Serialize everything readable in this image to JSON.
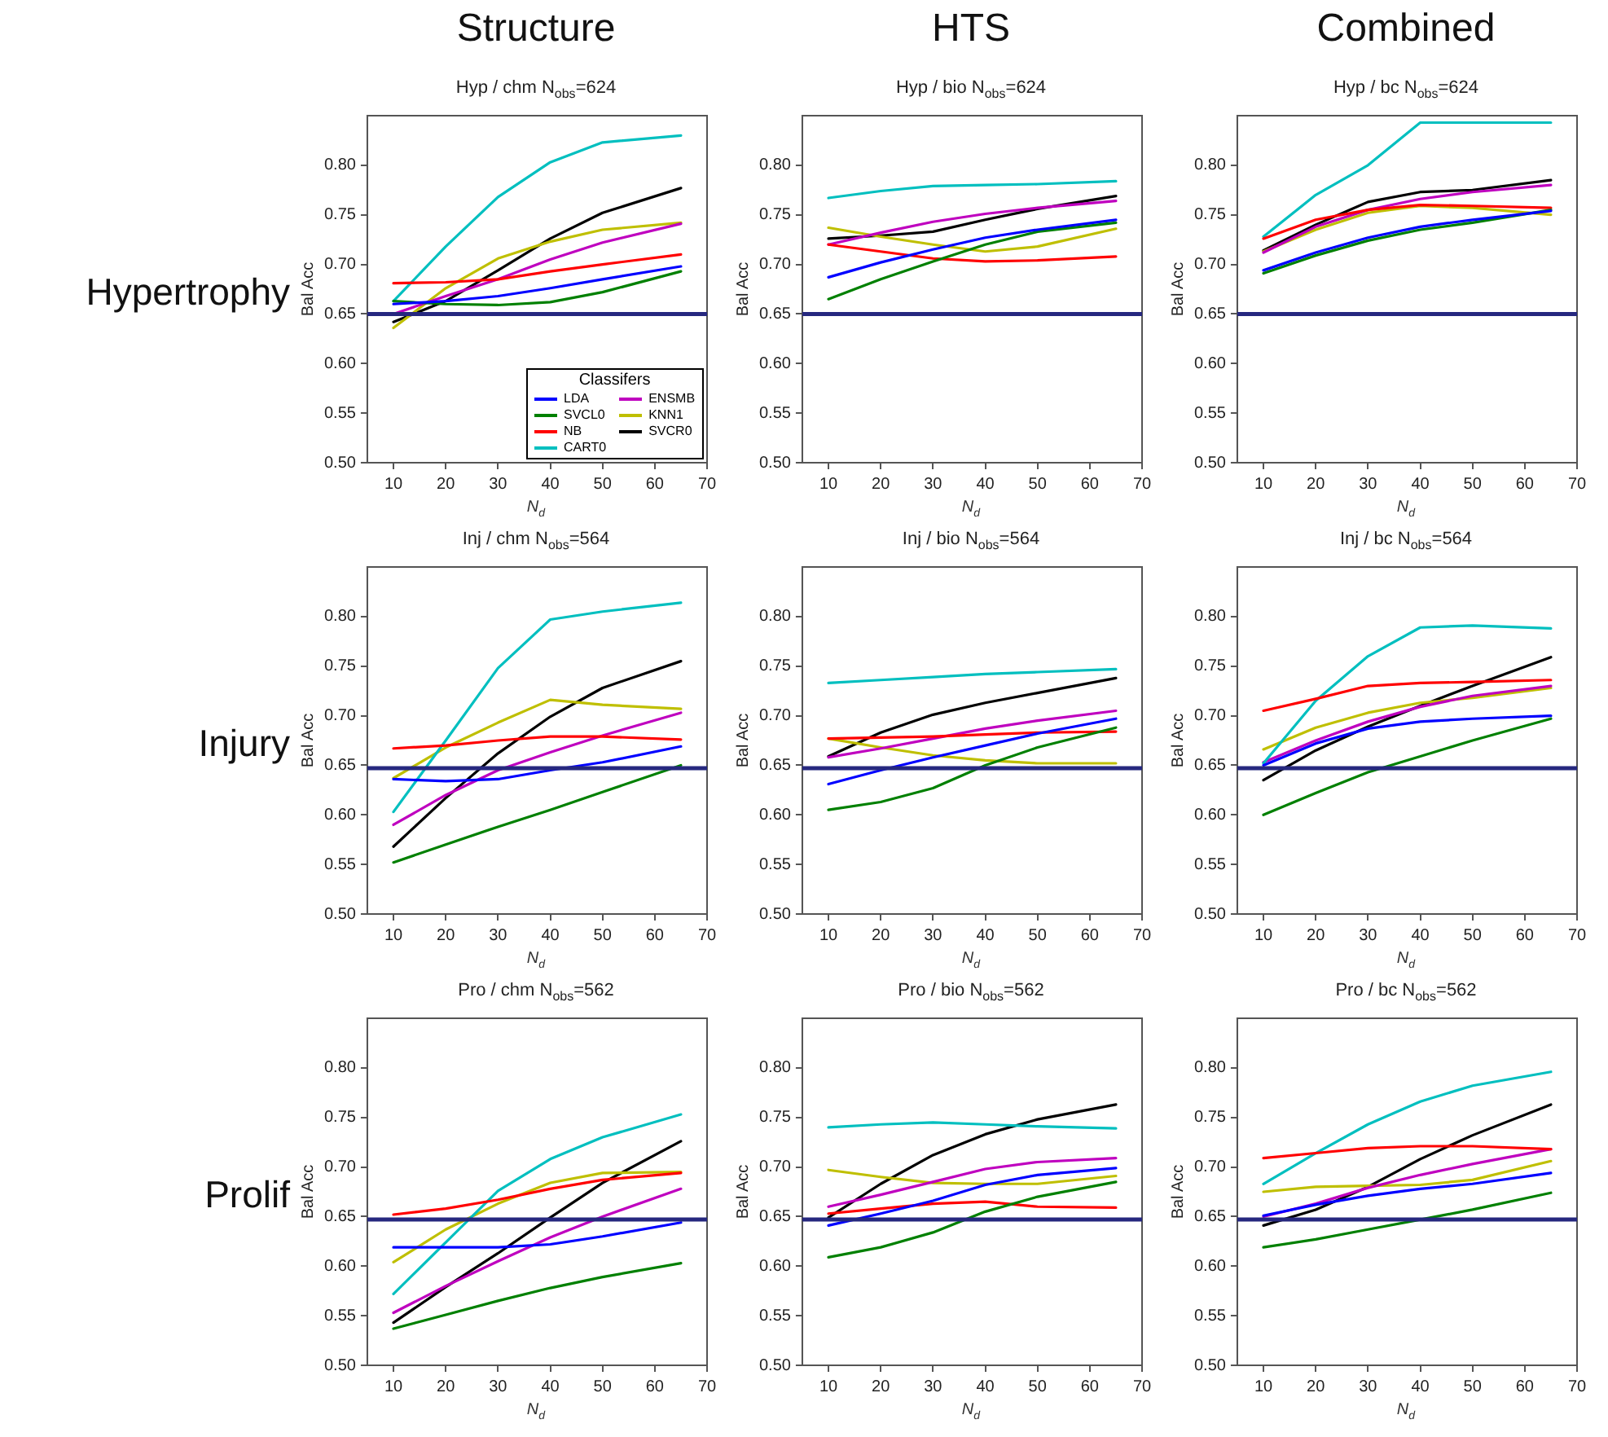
{
  "chart_data": [
    {
      "type": "line",
      "title": "Hyp / chm N$_{obs}$=624",
      "xlabel": "N$_{d}$",
      "ylabel": "Bal Acc",
      "annotations": [
        "Structure",
        "Hypertrophy"
      ],
      "legend": "bottom right",
      "legend_title": "Classifers",
      "x": [
        10,
        20,
        30,
        40,
        50,
        65
      ],
      "xlim": [
        5,
        70
      ],
      "xticks": [
        10,
        20,
        30,
        40,
        50,
        60,
        70
      ],
      "ylim": [
        0.5,
        0.85
      ],
      "yticks": [
        {
          "value": 0.5,
          "label": "0.50"
        },
        {
          "value": 0.55,
          "label": "0.55"
        },
        {
          "value": 0.6,
          "label": "0.60"
        },
        {
          "value": 0.65,
          "label": "0.65"
        },
        {
          "value": 0.7,
          "label": "0.70"
        },
        {
          "value": 0.75,
          "label": "0.75"
        },
        {
          "value": 0.8,
          "label": "0.80"
        }
      ],
      "ref_lines": [
        {
          "axis": "y",
          "value": 0.65,
          "color": "#26287f"
        }
      ],
      "series": [
        {
          "name": "LDA",
          "color": "#0000ff",
          "values": [
            0.66,
            0.663,
            0.668,
            0.676,
            0.685,
            0.698
          ]
        },
        {
          "name": "SVCL0",
          "color": "#008000",
          "values": [
            0.663,
            0.66,
            0.659,
            0.662,
            0.672,
            0.693
          ]
        },
        {
          "name": "NB",
          "color": "#ff0000",
          "values": [
            0.681,
            0.682,
            0.685,
            0.693,
            0.7,
            0.71
          ]
        },
        {
          "name": "CART0",
          "color": "#00bfbf",
          "values": [
            0.663,
            0.718,
            0.768,
            0.803,
            0.823,
            0.83
          ]
        },
        {
          "name": "ENSMB",
          "color": "#bf00bf",
          "values": [
            0.65,
            0.668,
            0.685,
            0.705,
            0.722,
            0.741
          ]
        },
        {
          "name": "KNN1",
          "color": "#bfbf00",
          "values": [
            0.636,
            0.676,
            0.706,
            0.723,
            0.735,
            0.742
          ]
        },
        {
          "name": "SVCR0",
          "color": "#000000",
          "values": [
            0.642,
            0.663,
            0.694,
            0.726,
            0.752,
            0.777
          ]
        }
      ]
    },
    {
      "type": "line",
      "title": "Hyp / bio N$_{obs}$=624",
      "xlabel": "N$_{d}$",
      "ylabel": "Bal Acc",
      "annotations": [
        "HTS"
      ],
      "x": [
        10,
        20,
        30,
        40,
        50,
        65
      ],
      "xlim": [
        5,
        70
      ],
      "xticks": [
        10,
        20,
        30,
        40,
        50,
        60,
        70
      ],
      "ylim": [
        0.5,
        0.85
      ],
      "yticks": [
        {
          "value": 0.5,
          "label": "0.50"
        },
        {
          "value": 0.55,
          "label": "0.55"
        },
        {
          "value": 0.6,
          "label": "0.60"
        },
        {
          "value": 0.65,
          "label": "0.65"
        },
        {
          "value": 0.7,
          "label": "0.70"
        },
        {
          "value": 0.75,
          "label": "0.75"
        },
        {
          "value": 0.8,
          "label": "0.80"
        }
      ],
      "ref_lines": [
        {
          "axis": "y",
          "value": 0.65,
          "color": "#26287f"
        }
      ],
      "series": [
        {
          "color": "#0000ff",
          "values": [
            0.687,
            0.702,
            0.715,
            0.727,
            0.735,
            0.745
          ]
        },
        {
          "color": "#008000",
          "values": [
            0.665,
            0.685,
            0.703,
            0.72,
            0.733,
            0.742
          ]
        },
        {
          "color": "#ff0000",
          "values": [
            0.72,
            0.713,
            0.706,
            0.703,
            0.704,
            0.708
          ]
        },
        {
          "color": "#00bfbf",
          "values": [
            0.767,
            0.774,
            0.779,
            0.78,
            0.781,
            0.784
          ]
        },
        {
          "color": "#bf00bf",
          "values": [
            0.72,
            0.732,
            0.743,
            0.751,
            0.757,
            0.764
          ]
        },
        {
          "color": "#bfbf00",
          "values": [
            0.737,
            0.728,
            0.72,
            0.713,
            0.718,
            0.736
          ]
        },
        {
          "color": "#000000",
          "values": [
            0.726,
            0.729,
            0.733,
            0.745,
            0.756,
            0.769
          ]
        }
      ]
    },
    {
      "type": "line",
      "title": "Hyp / bc N$_{obs}$=624",
      "xlabel": "N$_{d}$",
      "ylabel": "Bal Acc",
      "annotations": [
        "Combined"
      ],
      "x": [
        10,
        20,
        30,
        40,
        50,
        65
      ],
      "xlim": [
        5,
        70
      ],
      "xticks": [
        10,
        20,
        30,
        40,
        50,
        60,
        70
      ],
      "ylim": [
        0.5,
        0.85
      ],
      "yticks": [
        {
          "value": 0.5,
          "label": "0.50"
        },
        {
          "value": 0.55,
          "label": "0.55"
        },
        {
          "value": 0.6,
          "label": "0.60"
        },
        {
          "value": 0.65,
          "label": "0.65"
        },
        {
          "value": 0.7,
          "label": "0.70"
        },
        {
          "value": 0.75,
          "label": "0.75"
        },
        {
          "value": 0.8,
          "label": "0.80"
        }
      ],
      "ref_lines": [
        {
          "axis": "y",
          "value": 0.65,
          "color": "#26287f"
        }
      ],
      "series": [
        {
          "color": "#0000ff",
          "values": [
            0.694,
            0.712,
            0.727,
            0.738,
            0.745,
            0.754
          ]
        },
        {
          "color": "#008000",
          "values": [
            0.691,
            0.709,
            0.724,
            0.735,
            0.742,
            0.755
          ]
        },
        {
          "color": "#ff0000",
          "values": [
            0.726,
            0.745,
            0.755,
            0.76,
            0.759,
            0.757
          ]
        },
        {
          "color": "#00bfbf",
          "values": [
            0.728,
            0.77,
            0.8,
            0.843,
            0.843,
            0.843
          ]
        },
        {
          "color": "#bf00bf",
          "values": [
            0.712,
            0.738,
            0.755,
            0.766,
            0.773,
            0.78
          ]
        },
        {
          "color": "#bfbf00",
          "values": [
            0.713,
            0.735,
            0.752,
            0.759,
            0.757,
            0.75
          ]
        },
        {
          "color": "#000000",
          "values": [
            0.714,
            0.74,
            0.763,
            0.773,
            0.775,
            0.785
          ]
        }
      ]
    },
    {
      "type": "line",
      "title": "Inj / chm N$_{obs}$=564",
      "xlabel": "N$_{d}$",
      "ylabel": "Bal Acc",
      "annotations": [
        "Injury"
      ],
      "x": [
        10,
        20,
        30,
        40,
        50,
        65
      ],
      "xlim": [
        5,
        70
      ],
      "xticks": [
        10,
        20,
        30,
        40,
        50,
        60,
        70
      ],
      "ylim": [
        0.5,
        0.85
      ],
      "yticks": [
        {
          "value": 0.5,
          "label": "0.50"
        },
        {
          "value": 0.55,
          "label": "0.55"
        },
        {
          "value": 0.6,
          "label": "0.60"
        },
        {
          "value": 0.65,
          "label": "0.65"
        },
        {
          "value": 0.7,
          "label": "0.70"
        },
        {
          "value": 0.75,
          "label": "0.75"
        },
        {
          "value": 0.8,
          "label": "0.80"
        }
      ],
      "ref_lines": [
        {
          "axis": "y",
          "value": 0.647,
          "color": "#26287f"
        }
      ],
      "series": [
        {
          "color": "#0000ff",
          "values": [
            0.636,
            0.634,
            0.636,
            0.645,
            0.653,
            0.669
          ]
        },
        {
          "color": "#008000",
          "values": [
            0.552,
            0.57,
            0.588,
            0.605,
            0.623,
            0.65
          ]
        },
        {
          "color": "#ff0000",
          "values": [
            0.667,
            0.67,
            0.675,
            0.679,
            0.679,
            0.676
          ]
        },
        {
          "color": "#00bfbf",
          "values": [
            0.603,
            0.675,
            0.748,
            0.797,
            0.805,
            0.814
          ]
        },
        {
          "color": "#bf00bf",
          "values": [
            0.59,
            0.62,
            0.645,
            0.663,
            0.68,
            0.703
          ]
        },
        {
          "color": "#bfbf00",
          "values": [
            0.637,
            0.668,
            0.693,
            0.716,
            0.711,
            0.707
          ]
        },
        {
          "color": "#000000",
          "values": [
            0.568,
            0.617,
            0.662,
            0.699,
            0.728,
            0.755
          ]
        }
      ]
    },
    {
      "type": "line",
      "title": "Inj / bio N$_{obs}$=564",
      "xlabel": "N$_{d}$",
      "ylabel": "Bal Acc",
      "x": [
        10,
        20,
        30,
        40,
        50,
        65
      ],
      "xlim": [
        5,
        70
      ],
      "xticks": [
        10,
        20,
        30,
        40,
        50,
        60,
        70
      ],
      "ylim": [
        0.5,
        0.85
      ],
      "yticks": [
        {
          "value": 0.5,
          "label": "0.50"
        },
        {
          "value": 0.55,
          "label": "0.55"
        },
        {
          "value": 0.6,
          "label": "0.60"
        },
        {
          "value": 0.65,
          "label": "0.65"
        },
        {
          "value": 0.7,
          "label": "0.70"
        },
        {
          "value": 0.75,
          "label": "0.75"
        },
        {
          "value": 0.8,
          "label": "0.80"
        }
      ],
      "ref_lines": [
        {
          "axis": "y",
          "value": 0.647,
          "color": "#26287f"
        }
      ],
      "series": [
        {
          "color": "#0000ff",
          "values": [
            0.631,
            0.645,
            0.658,
            0.67,
            0.682,
            0.697
          ]
        },
        {
          "color": "#008000",
          "values": [
            0.605,
            0.613,
            0.627,
            0.65,
            0.668,
            0.688
          ]
        },
        {
          "color": "#ff0000",
          "values": [
            0.677,
            0.678,
            0.679,
            0.681,
            0.683,
            0.684
          ]
        },
        {
          "color": "#00bfbf",
          "values": [
            0.733,
            0.736,
            0.739,
            0.742,
            0.744,
            0.747
          ]
        },
        {
          "color": "#bf00bf",
          "values": [
            0.658,
            0.667,
            0.677,
            0.687,
            0.695,
            0.705
          ]
        },
        {
          "color": "#bfbf00",
          "values": [
            0.677,
            0.668,
            0.66,
            0.655,
            0.652,
            0.652
          ]
        },
        {
          "color": "#000000",
          "values": [
            0.659,
            0.683,
            0.701,
            0.713,
            0.723,
            0.738
          ]
        }
      ]
    },
    {
      "type": "line",
      "title": "Inj / bc N$_{obs}$=564",
      "xlabel": "N$_{d}$",
      "ylabel": "Bal Acc",
      "x": [
        10,
        20,
        30,
        40,
        50,
        65
      ],
      "xlim": [
        5,
        70
      ],
      "xticks": [
        10,
        20,
        30,
        40,
        50,
        60,
        70
      ],
      "ylim": [
        0.5,
        0.85
      ],
      "yticks": [
        {
          "value": 0.5,
          "label": "0.50"
        },
        {
          "value": 0.55,
          "label": "0.55"
        },
        {
          "value": 0.6,
          "label": "0.60"
        },
        {
          "value": 0.65,
          "label": "0.65"
        },
        {
          "value": 0.7,
          "label": "0.70"
        },
        {
          "value": 0.75,
          "label": "0.75"
        },
        {
          "value": 0.8,
          "label": "0.80"
        }
      ],
      "ref_lines": [
        {
          "axis": "y",
          "value": 0.647,
          "color": "#26287f"
        }
      ],
      "series": [
        {
          "color": "#0000ff",
          "values": [
            0.65,
            0.672,
            0.687,
            0.694,
            0.697,
            0.7
          ]
        },
        {
          "color": "#008000",
          "values": [
            0.6,
            0.622,
            0.643,
            0.659,
            0.675,
            0.697
          ]
        },
        {
          "color": "#ff0000",
          "values": [
            0.705,
            0.717,
            0.73,
            0.733,
            0.734,
            0.736
          ]
        },
        {
          "color": "#00bfbf",
          "values": [
            0.652,
            0.715,
            0.76,
            0.789,
            0.791,
            0.788
          ]
        },
        {
          "color": "#bf00bf",
          "values": [
            0.653,
            0.675,
            0.694,
            0.709,
            0.72,
            0.73
          ]
        },
        {
          "color": "#bfbf00",
          "values": [
            0.666,
            0.688,
            0.703,
            0.713,
            0.718,
            0.728
          ]
        },
        {
          "color": "#000000",
          "values": [
            0.635,
            0.665,
            0.689,
            0.71,
            0.73,
            0.759
          ]
        }
      ]
    },
    {
      "type": "line",
      "title": "Pro / chm N$_{obs}$=562",
      "xlabel": "N$_{d}$",
      "ylabel": "Bal Acc",
      "annotations": [
        "Prolif"
      ],
      "x": [
        10,
        20,
        30,
        40,
        50,
        65
      ],
      "xlim": [
        5,
        70
      ],
      "xticks": [
        10,
        20,
        30,
        40,
        50,
        60,
        70
      ],
      "ylim": [
        0.5,
        0.85
      ],
      "yticks": [
        {
          "value": 0.5,
          "label": "0.50"
        },
        {
          "value": 0.55,
          "label": "0.55"
        },
        {
          "value": 0.6,
          "label": "0.60"
        },
        {
          "value": 0.65,
          "label": "0.65"
        },
        {
          "value": 0.7,
          "label": "0.70"
        },
        {
          "value": 0.75,
          "label": "0.75"
        },
        {
          "value": 0.8,
          "label": "0.80"
        }
      ],
      "ref_lines": [
        {
          "axis": "y",
          "value": 0.647,
          "color": "#26287f"
        }
      ],
      "series": [
        {
          "color": "#0000ff",
          "values": [
            0.619,
            0.619,
            0.619,
            0.622,
            0.63,
            0.644
          ]
        },
        {
          "color": "#008000",
          "values": [
            0.537,
            0.551,
            0.565,
            0.578,
            0.589,
            0.603
          ]
        },
        {
          "color": "#ff0000",
          "values": [
            0.652,
            0.658,
            0.667,
            0.678,
            0.687,
            0.694
          ]
        },
        {
          "color": "#00bfbf",
          "values": [
            0.572,
            0.624,
            0.676,
            0.708,
            0.73,
            0.753
          ]
        },
        {
          "color": "#bf00bf",
          "values": [
            0.553,
            0.58,
            0.605,
            0.629,
            0.65,
            0.678
          ]
        },
        {
          "color": "#bfbf00",
          "values": [
            0.604,
            0.637,
            0.663,
            0.684,
            0.694,
            0.695
          ]
        },
        {
          "color": "#000000",
          "values": [
            0.543,
            0.579,
            0.613,
            0.649,
            0.684,
            0.726
          ]
        }
      ]
    },
    {
      "type": "line",
      "title": "Pro / bio N$_{obs}$=562",
      "xlabel": "N$_{d}$",
      "ylabel": "Bal Acc",
      "x": [
        10,
        20,
        30,
        40,
        50,
        65
      ],
      "xlim": [
        5,
        70
      ],
      "xticks": [
        10,
        20,
        30,
        40,
        50,
        60,
        70
      ],
      "ylim": [
        0.5,
        0.85
      ],
      "yticks": [
        {
          "value": 0.5,
          "label": "0.50"
        },
        {
          "value": 0.55,
          "label": "0.55"
        },
        {
          "value": 0.6,
          "label": "0.60"
        },
        {
          "value": 0.65,
          "label": "0.65"
        },
        {
          "value": 0.7,
          "label": "0.70"
        },
        {
          "value": 0.75,
          "label": "0.75"
        },
        {
          "value": 0.8,
          "label": "0.80"
        }
      ],
      "ref_lines": [
        {
          "axis": "y",
          "value": 0.647,
          "color": "#26287f"
        }
      ],
      "series": [
        {
          "color": "#0000ff",
          "values": [
            0.641,
            0.653,
            0.666,
            0.682,
            0.692,
            0.699
          ]
        },
        {
          "color": "#008000",
          "values": [
            0.609,
            0.619,
            0.634,
            0.655,
            0.67,
            0.685
          ]
        },
        {
          "color": "#ff0000",
          "values": [
            0.653,
            0.658,
            0.663,
            0.665,
            0.66,
            0.659
          ]
        },
        {
          "color": "#00bfbf",
          "values": [
            0.74,
            0.743,
            0.745,
            0.743,
            0.741,
            0.739
          ]
        },
        {
          "color": "#bf00bf",
          "values": [
            0.66,
            0.672,
            0.685,
            0.698,
            0.705,
            0.709
          ]
        },
        {
          "color": "#bfbf00",
          "values": [
            0.697,
            0.69,
            0.684,
            0.683,
            0.683,
            0.691
          ]
        },
        {
          "color": "#000000",
          "values": [
            0.649,
            0.683,
            0.712,
            0.733,
            0.748,
            0.763
          ]
        }
      ]
    },
    {
      "type": "line",
      "title": "Pro / bc N$_{obs}$=562",
      "xlabel": "N$_{d}$",
      "ylabel": "Bal Acc",
      "x": [
        10,
        20,
        30,
        40,
        50,
        65
      ],
      "xlim": [
        5,
        70
      ],
      "xticks": [
        10,
        20,
        30,
        40,
        50,
        60,
        70
      ],
      "ylim": [
        0.5,
        0.85
      ],
      "yticks": [
        {
          "value": 0.5,
          "label": "0.50"
        },
        {
          "value": 0.55,
          "label": "0.55"
        },
        {
          "value": 0.6,
          "label": "0.60"
        },
        {
          "value": 0.65,
          "label": "0.65"
        },
        {
          "value": 0.7,
          "label": "0.70"
        },
        {
          "value": 0.75,
          "label": "0.75"
        },
        {
          "value": 0.8,
          "label": "0.80"
        }
      ],
      "ref_lines": [
        {
          "axis": "y",
          "value": 0.647,
          "color": "#26287f"
        }
      ],
      "series": [
        {
          "color": "#0000ff",
          "values": [
            0.651,
            0.662,
            0.671,
            0.678,
            0.683,
            0.694
          ]
        },
        {
          "color": "#008000",
          "values": [
            0.619,
            0.627,
            0.637,
            0.647,
            0.657,
            0.674
          ]
        },
        {
          "color": "#ff0000",
          "values": [
            0.709,
            0.714,
            0.719,
            0.721,
            0.721,
            0.718
          ]
        },
        {
          "color": "#00bfbf",
          "values": [
            0.683,
            0.714,
            0.743,
            0.766,
            0.782,
            0.796
          ]
        },
        {
          "color": "#bf00bf",
          "values": [
            0.65,
            0.663,
            0.679,
            0.692,
            0.703,
            0.718
          ]
        },
        {
          "color": "#bfbf00",
          "values": [
            0.675,
            0.68,
            0.681,
            0.682,
            0.687,
            0.706
          ]
        },
        {
          "color": "#000000",
          "values": [
            0.641,
            0.657,
            0.68,
            0.708,
            0.732,
            0.763
          ]
        }
      ]
    }
  ]
}
